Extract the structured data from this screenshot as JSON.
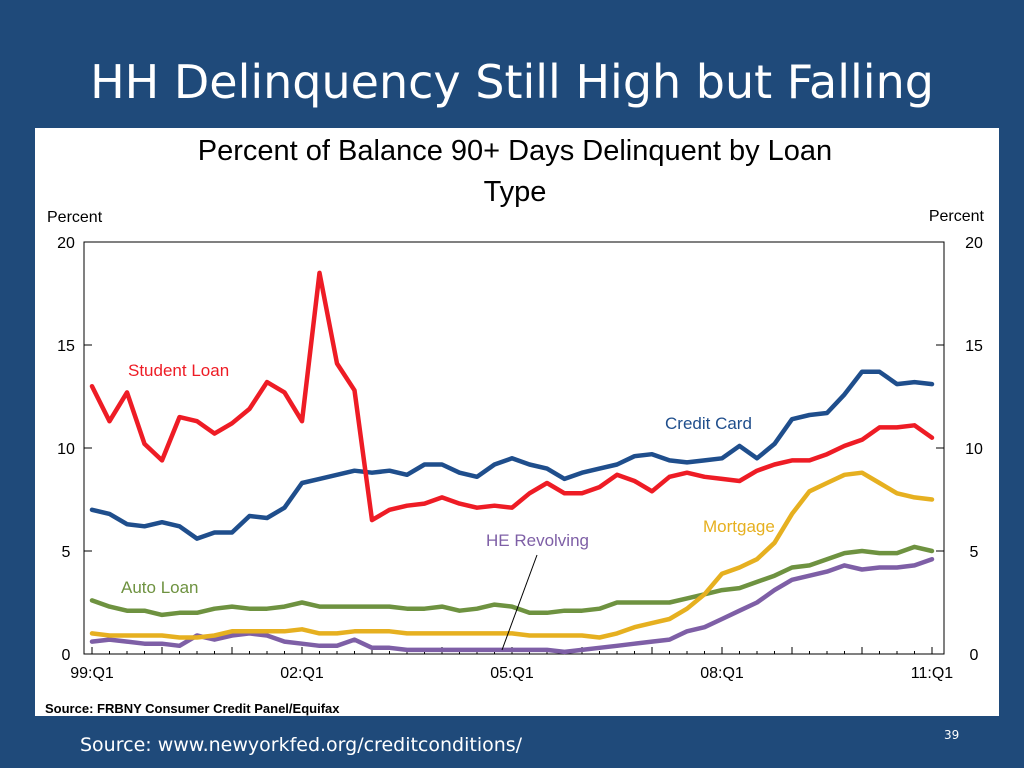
{
  "slide": {
    "title": "HH Delinquency Still High but Falling",
    "source_text": "Source: www.newyorkfed.org/creditconditions/",
    "page_number": "39"
  },
  "chart_data": {
    "type": "line",
    "title": "Percent of Balance 90+ Days Delinquent by Loan Type",
    "title_lines": [
      "Percent of Balance 90+ Days Delinquent by Loan",
      "Type"
    ],
    "ylabel_left": "Percent",
    "ylabel_right": "Percent",
    "ylim": [
      0,
      20
    ],
    "yticks": [
      0,
      5,
      10,
      15,
      20
    ],
    "x_start": "99:Q1",
    "x_end": "11:Q1",
    "x_tick_labels": [
      "99:Q1",
      "02:Q1",
      "05:Q1",
      "08:Q1",
      "11:Q1"
    ],
    "source": "Source: FRBNY Consumer Credit Panel/Equifax",
    "grid": false,
    "series": [
      {
        "name": "Student Loan",
        "color": "#ee1c25",
        "values": [
          13.0,
          11.3,
          12.7,
          10.2,
          9.4,
          11.5,
          11.3,
          10.7,
          11.2,
          11.9,
          13.2,
          12.7,
          11.3,
          18.5,
          14.1,
          12.8,
          6.5,
          7.0,
          7.2,
          7.3,
          7.6,
          7.3,
          7.1,
          7.2,
          7.1,
          7.8,
          8.3,
          7.8,
          7.8,
          8.1,
          8.7,
          8.4,
          7.9,
          8.6,
          8.8,
          8.6,
          8.5,
          8.4,
          8.9,
          9.2,
          9.4,
          9.4,
          9.7,
          10.1,
          10.4,
          11.0,
          11.0,
          11.1,
          10.5
        ]
      },
      {
        "name": "Credit Card",
        "color": "#1f4e8c",
        "values": [
          7.0,
          6.8,
          6.3,
          6.2,
          6.4,
          6.2,
          5.6,
          5.9,
          5.9,
          6.7,
          6.6,
          7.1,
          8.3,
          8.5,
          8.7,
          8.9,
          8.8,
          8.9,
          8.7,
          9.2,
          9.2,
          8.8,
          8.6,
          9.2,
          9.5,
          9.2,
          9.0,
          8.5,
          8.8,
          9.0,
          9.2,
          9.6,
          9.7,
          9.4,
          9.3,
          9.4,
          9.5,
          10.1,
          9.5,
          10.2,
          11.4,
          11.6,
          11.7,
          12.6,
          13.7,
          13.7,
          13.1,
          13.2,
          13.1
        ]
      },
      {
        "name": "Mortgage",
        "color": "#e6b020",
        "values": [
          1.0,
          0.9,
          0.9,
          0.9,
          0.9,
          0.8,
          0.8,
          0.9,
          1.1,
          1.1,
          1.1,
          1.1,
          1.2,
          1.0,
          1.0,
          1.1,
          1.1,
          1.1,
          1.0,
          1.0,
          1.0,
          1.0,
          1.0,
          1.0,
          1.0,
          0.9,
          0.9,
          0.9,
          0.9,
          0.8,
          1.0,
          1.3,
          1.5,
          1.7,
          2.2,
          2.9,
          3.9,
          4.2,
          4.6,
          5.4,
          6.8,
          7.9,
          8.3,
          8.7,
          8.8,
          8.3,
          7.8,
          7.6,
          7.5
        ]
      },
      {
        "name": "Auto Loan",
        "color": "#6e9240",
        "values": [
          2.6,
          2.3,
          2.1,
          2.1,
          1.9,
          2.0,
          2.0,
          2.2,
          2.3,
          2.2,
          2.2,
          2.3,
          2.5,
          2.3,
          2.3,
          2.3,
          2.3,
          2.3,
          2.2,
          2.2,
          2.3,
          2.1,
          2.2,
          2.4,
          2.3,
          2.0,
          2.0,
          2.1,
          2.1,
          2.2,
          2.5,
          2.5,
          2.5,
          2.5,
          2.7,
          2.9,
          3.1,
          3.2,
          3.5,
          3.8,
          4.2,
          4.3,
          4.6,
          4.9,
          5.0,
          4.9,
          4.9,
          5.2,
          5.0
        ]
      },
      {
        "name": "HE Revolving",
        "color": "#7e5fa6",
        "values": [
          0.6,
          0.7,
          0.6,
          0.5,
          0.5,
          0.4,
          0.9,
          0.7,
          0.9,
          1.0,
          0.9,
          0.6,
          0.5,
          0.4,
          0.4,
          0.7,
          0.3,
          0.3,
          0.2,
          0.2,
          0.2,
          0.2,
          0.2,
          0.2,
          0.2,
          0.2,
          0.2,
          0.1,
          0.2,
          0.3,
          0.4,
          0.5,
          0.6,
          0.7,
          1.1,
          1.3,
          1.7,
          2.1,
          2.5,
          3.1,
          3.6,
          3.8,
          4.0,
          4.3,
          4.1,
          4.2,
          4.2,
          4.3,
          4.6
        ]
      }
    ],
    "annotations": [
      {
        "text": "Student Loan",
        "color": "#ee1c25"
      },
      {
        "text": "Credit Card",
        "color": "#1f4e8c"
      },
      {
        "text": "Mortgage",
        "color": "#e6b020"
      },
      {
        "text": "Auto Loan",
        "color": "#6e9240"
      },
      {
        "text": "HE Revolving",
        "color": "#7e5fa6"
      }
    ]
  }
}
